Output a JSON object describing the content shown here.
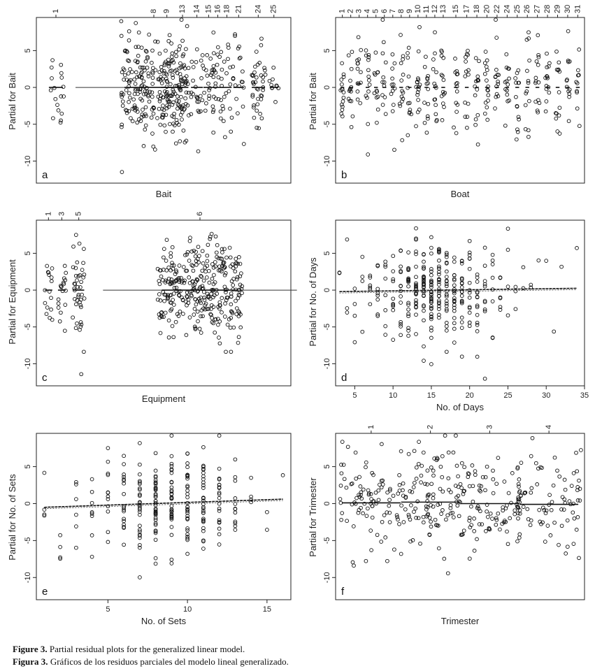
{
  "caption": {
    "en_label": "Figure 3.",
    "en_text": "Partial residual plots for the generalized linear model.",
    "es_label": "Figura 3.",
    "es_text": "Gráficos de los residuos parciales del modelo lineal generalizado."
  },
  "chart_data": [
    {
      "id": "a",
      "type": "scatter",
      "panel_label": "a",
      "xlabel": "Bait",
      "ylabel": "Partial for Bait",
      "ylim": [
        -13,
        9.5
      ],
      "yticks": [
        -10,
        -5,
        0,
        5
      ],
      "x_kind": "categorical",
      "top_labels": [
        "1",
        "8",
        "9",
        "13",
        "14",
        "15",
        "16",
        "18",
        "21",
        "24",
        "25"
      ],
      "groups": [
        {
          "name": "1",
          "center": 0.5,
          "width": 1.2,
          "n": 18,
          "sd": 3.0,
          "fit": 0.0
        },
        {
          "name": "8",
          "center": 8.0,
          "width": 5.0,
          "n": 260,
          "sd": 3.3,
          "fit": 0.0
        },
        {
          "name": "9",
          "center": 9.0,
          "width": 1.0,
          "n": 14,
          "sd": 2.8,
          "fit": 0.0
        },
        {
          "name": "13",
          "center": 10.2,
          "width": 1.0,
          "n": 26,
          "sd": 3.0,
          "fit": 0.0
        },
        {
          "name": "14",
          "center": 11.3,
          "width": 1.0,
          "n": 24,
          "sd": 3.0,
          "fit": 0.0
        },
        {
          "name": "15",
          "center": 12.2,
          "width": 0.9,
          "n": 22,
          "sd": 3.0,
          "fit": 0.0
        },
        {
          "name": "16",
          "center": 12.9,
          "width": 0.8,
          "n": 22,
          "sd": 3.4,
          "fit": 0.0
        },
        {
          "name": "18",
          "center": 13.6,
          "width": 0.8,
          "n": 18,
          "sd": 2.8,
          "fit": 0.0
        },
        {
          "name": "21",
          "center": 14.5,
          "width": 0.9,
          "n": 20,
          "sd": 3.0,
          "fit": 0.0
        },
        {
          "name": "24",
          "center": 16.0,
          "width": 1.1,
          "n": 40,
          "sd": 3.0,
          "fit": 0.0
        },
        {
          "name": "25",
          "center": 17.2,
          "width": 0.7,
          "n": 10,
          "sd": 2.2,
          "fit": 0.0
        }
      ],
      "xlim": [
        -1.0,
        18.5
      ],
      "fit_line": {
        "x": [
          2.0,
          6.5
        ],
        "y": [
          0.0,
          0.0
        ]
      }
    },
    {
      "id": "b",
      "type": "scatter",
      "panel_label": "b",
      "xlabel": "Boat",
      "ylabel": "Partial for Bait",
      "ylim": [
        -13,
        9.5
      ],
      "yticks": [
        -10,
        -5,
        0,
        5
      ],
      "x_kind": "categorical",
      "top_labels": [
        "1",
        "2",
        "3",
        "4",
        "5",
        "6",
        "7",
        "8",
        "9",
        "10",
        "11",
        "12",
        "13",
        "15",
        "17",
        "18",
        "20",
        "22",
        "24",
        "25",
        "26",
        "27",
        "28",
        "29",
        "30",
        "31"
      ],
      "groups": [
        {
          "name": "1",
          "center": 1.0,
          "width": 0.5,
          "n": 16,
          "sd": 3.2,
          "fit": 0.0
        },
        {
          "name": "2",
          "center": 2.0,
          "width": 0.5,
          "n": 14,
          "sd": 3.5,
          "fit": 0.0
        },
        {
          "name": "3",
          "center": 3.0,
          "width": 0.5,
          "n": 14,
          "sd": 3.0,
          "fit": 0.5
        },
        {
          "name": "4",
          "center": 4.0,
          "width": 0.5,
          "n": 14,
          "sd": 3.2,
          "fit": 0.0
        },
        {
          "name": "5",
          "center": 5.0,
          "width": 0.5,
          "n": 12,
          "sd": 3.2,
          "fit": 0.0
        },
        {
          "name": "6",
          "center": 6.0,
          "width": 0.5,
          "n": 12,
          "sd": 3.0,
          "fit": 0.0
        },
        {
          "name": "7",
          "center": 7.0,
          "width": 0.5,
          "n": 12,
          "sd": 3.2,
          "fit": 0.0
        },
        {
          "name": "8",
          "center": 8.0,
          "width": 0.5,
          "n": 14,
          "sd": 3.0,
          "fit": 0.0
        },
        {
          "name": "9",
          "center": 9.0,
          "width": 0.5,
          "n": 12,
          "sd": 3.4,
          "fit": 0.0
        },
        {
          "name": "10",
          "center": 10.0,
          "width": 0.5,
          "n": 16,
          "sd": 3.4,
          "fit": 0.0
        },
        {
          "name": "11",
          "center": 11.0,
          "width": 0.5,
          "n": 14,
          "sd": 3.6,
          "fit": 0.0
        },
        {
          "name": "12",
          "center": 12.0,
          "width": 0.5,
          "n": 14,
          "sd": 3.0,
          "fit": 0.0
        },
        {
          "name": "13",
          "center": 13.0,
          "width": 0.5,
          "n": 14,
          "sd": 3.0,
          "fit": 0.0
        },
        {
          "name": "15",
          "center": 14.5,
          "width": 0.5,
          "n": 14,
          "sd": 3.0,
          "fit": 0.0
        },
        {
          "name": "17",
          "center": 15.8,
          "width": 0.5,
          "n": 14,
          "sd": 3.0,
          "fit": 0.0
        },
        {
          "name": "18",
          "center": 17.0,
          "width": 0.5,
          "n": 14,
          "sd": 3.2,
          "fit": 0.0
        },
        {
          "name": "20",
          "center": 18.2,
          "width": 0.5,
          "n": 16,
          "sd": 3.2,
          "fit": 0.0
        },
        {
          "name": "22",
          "center": 19.4,
          "width": 0.5,
          "n": 14,
          "sd": 3.0,
          "fit": 0.0
        },
        {
          "name": "24",
          "center": 20.6,
          "width": 0.5,
          "n": 14,
          "sd": 3.0,
          "fit": 0.0
        },
        {
          "name": "25",
          "center": 21.8,
          "width": 0.5,
          "n": 14,
          "sd": 3.6,
          "fit": 0.0
        },
        {
          "name": "26",
          "center": 23.0,
          "width": 0.5,
          "n": 14,
          "sd": 3.2,
          "fit": 0.0
        },
        {
          "name": "27",
          "center": 24.2,
          "width": 0.5,
          "n": 14,
          "sd": 3.2,
          "fit": 0.0
        },
        {
          "name": "28",
          "center": 25.4,
          "width": 0.5,
          "n": 14,
          "sd": 3.0,
          "fit": 0.0
        },
        {
          "name": "29",
          "center": 26.6,
          "width": 0.5,
          "n": 14,
          "sd": 3.0,
          "fit": 0.0
        },
        {
          "name": "30",
          "center": 27.8,
          "width": 0.5,
          "n": 12,
          "sd": 3.0,
          "fit": 0.0
        },
        {
          "name": "31",
          "center": 29.0,
          "width": 0.5,
          "n": 10,
          "sd": 3.0,
          "fit": 0.0
        }
      ],
      "xlim": [
        0.2,
        29.8
      ]
    },
    {
      "id": "c",
      "type": "scatter",
      "panel_label": "c",
      "xlabel": "Equipment",
      "ylabel": "Partial for Equipment",
      "ylim": [
        -13,
        9.5
      ],
      "yticks": [
        -10,
        -5,
        0,
        5
      ],
      "x_kind": "categorical",
      "top_labels": [
        "1",
        "3",
        "5",
        "6"
      ],
      "groups": [
        {
          "name": "1",
          "center": 0.5,
          "width": 0.7,
          "n": 16,
          "sd": 3.2,
          "fit": 0.0
        },
        {
          "name": "3",
          "center": 1.6,
          "width": 0.7,
          "n": 18,
          "sd": 3.2,
          "fit": 0.0
        },
        {
          "name": "5",
          "center": 3.0,
          "width": 1.0,
          "n": 42,
          "sd": 4.0,
          "fit": 0.0
        },
        {
          "name": "6",
          "center": 13.0,
          "width": 7.0,
          "n": 330,
          "sd": 3.2,
          "fit": 0.0
        }
      ],
      "xlim": [
        -0.5,
        20.5
      ],
      "fit_line": {
        "x": [
          5.0,
          21.0
        ],
        "y": [
          0.0,
          0.0
        ]
      }
    },
    {
      "id": "d",
      "type": "scatter",
      "panel_label": "d",
      "xlabel": "No. of Days",
      "ylabel": "Partial for No. of Days",
      "xlim": [
        2.5,
        35
      ],
      "ylim": [
        -13,
        9.5
      ],
      "xticks": [
        5,
        10,
        15,
        20,
        25,
        30,
        35
      ],
      "yticks": [
        -10,
        -5,
        0,
        5
      ],
      "x_kind": "numeric",
      "x_values": [
        3,
        4,
        5,
        6,
        7,
        8,
        9,
        10,
        11,
        12,
        13,
        14,
        15,
        16,
        17,
        18,
        19,
        20,
        21,
        22,
        23,
        24,
        25,
        26,
        27,
        28,
        29,
        30,
        31,
        32,
        33,
        34
      ],
      "x_counts": [
        2,
        3,
        4,
        4,
        6,
        8,
        8,
        10,
        14,
        20,
        24,
        30,
        36,
        28,
        24,
        22,
        20,
        16,
        14,
        10,
        8,
        6,
        4,
        3,
        2,
        2,
        1,
        1,
        1,
        1,
        0,
        1
      ],
      "sd": 3.2,
      "fit_line": {
        "x": [
          3,
          34
        ],
        "y": [
          -0.2,
          0.25
        ]
      }
    },
    {
      "id": "e",
      "type": "scatter",
      "panel_label": "e",
      "xlabel": "No. of Sets",
      "ylabel": "Partial for No. of Sets",
      "xlim": [
        0.5,
        16.5
      ],
      "ylim": [
        -13,
        9.5
      ],
      "xticks": [
        5,
        10,
        15
      ],
      "yticks": [
        -10,
        -5,
        0,
        5
      ],
      "x_kind": "numeric",
      "x_values": [
        1,
        2,
        3,
        4,
        5,
        6,
        7,
        8,
        9,
        10,
        11,
        12,
        13,
        14,
        15,
        16
      ],
      "x_counts": [
        4,
        4,
        6,
        8,
        12,
        18,
        28,
        38,
        36,
        34,
        30,
        20,
        12,
        4,
        2,
        1
      ],
      "sd": 3.4,
      "fit_line": {
        "x": [
          1,
          16
        ],
        "y": [
          -0.5,
          0.6
        ]
      }
    },
    {
      "id": "f",
      "type": "scatter",
      "panel_label": "f",
      "xlabel": "Trimester",
      "ylabel": "Partial for Trimester",
      "ylim": [
        -13,
        9.5
      ],
      "yticks": [
        -10,
        -5,
        0,
        5
      ],
      "x_kind": "categorical",
      "top_labels": [
        "1",
        "2",
        "3",
        "4"
      ],
      "groups": [
        {
          "name": "1",
          "center": 1.0,
          "width": 1.1,
          "n": 90,
          "sd": 3.3,
          "fit": 0.1
        },
        {
          "name": "2",
          "center": 2.0,
          "width": 1.1,
          "n": 110,
          "sd": 3.6,
          "fit": 0.2
        },
        {
          "name": "3",
          "center": 3.0,
          "width": 1.1,
          "n": 95,
          "sd": 2.8,
          "fit": 0.0
        },
        {
          "name": "4",
          "center": 4.0,
          "width": 1.1,
          "n": 80,
          "sd": 3.3,
          "fit": -0.1
        }
      ],
      "xlim": [
        0.4,
        4.6
      ]
    }
  ]
}
